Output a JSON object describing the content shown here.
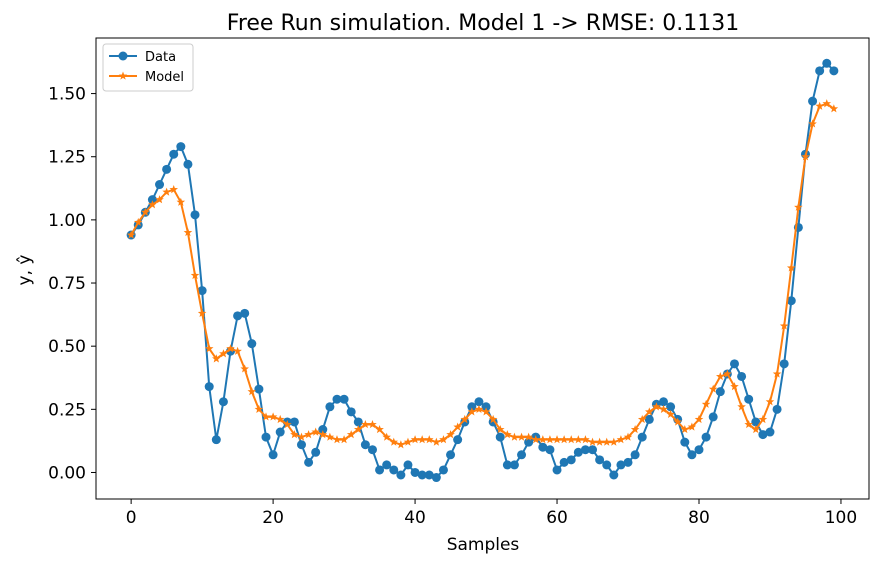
{
  "chart_data": {
    "type": "line",
    "title": "Free Run simulation. Model 1 -> RMSE: 0.1131",
    "xlabel": "Samples",
    "ylabel": "y, ŷ",
    "xlim": [
      -4.95,
      103.95
    ],
    "ylim": [
      -0.105,
      1.72
    ],
    "xticks": [
      0,
      20,
      40,
      60,
      80,
      100
    ],
    "yticks": [
      0.0,
      0.25,
      0.5,
      0.75,
      1.0,
      1.25,
      1.5
    ],
    "xtick_labels": [
      "0",
      "20",
      "40",
      "60",
      "80",
      "100"
    ],
    "ytick_labels": [
      "0.00",
      "0.25",
      "0.50",
      "0.75",
      "1.00",
      "1.25",
      "1.50"
    ],
    "grid": false,
    "legend_position": "upper-left",
    "series": [
      {
        "name": "Data",
        "color": "#1f77b4",
        "marker": "circle",
        "values": [
          0.94,
          0.98,
          1.03,
          1.08,
          1.14,
          1.2,
          1.26,
          1.29,
          1.22,
          1.02,
          0.72,
          0.34,
          0.13,
          0.28,
          0.48,
          0.62,
          0.63,
          0.51,
          0.33,
          0.14,
          0.07,
          0.16,
          0.2,
          0.2,
          0.11,
          0.04,
          0.08,
          0.17,
          0.26,
          0.29,
          0.29,
          0.24,
          0.2,
          0.11,
          0.09,
          0.01,
          0.03,
          0.01,
          -0.01,
          0.03,
          0.0,
          -0.01,
          -0.01,
          -0.02,
          0.01,
          0.07,
          0.13,
          0.2,
          0.26,
          0.28,
          0.26,
          0.2,
          0.14,
          0.03,
          0.03,
          0.07,
          0.12,
          0.14,
          0.1,
          0.09,
          0.01,
          0.04,
          0.05,
          0.08,
          0.09,
          0.09,
          0.05,
          0.03,
          -0.01,
          0.03,
          0.04,
          0.07,
          0.14,
          0.21,
          0.27,
          0.28,
          0.26,
          0.21,
          0.12,
          0.07,
          0.09,
          0.14,
          0.22,
          0.32,
          0.39,
          0.43,
          0.38,
          0.29,
          0.2,
          0.15,
          0.16,
          0.25,
          0.43,
          0.68,
          0.97,
          1.26,
          1.47,
          1.59,
          1.62,
          1.59
        ]
      },
      {
        "name": "Model",
        "color": "#ff7f0e",
        "marker": "star",
        "values": [
          0.94,
          0.99,
          1.03,
          1.06,
          1.08,
          1.11,
          1.12,
          1.07,
          0.95,
          0.78,
          0.63,
          0.49,
          0.45,
          0.47,
          0.49,
          0.48,
          0.41,
          0.32,
          0.25,
          0.22,
          0.22,
          0.21,
          0.19,
          0.15,
          0.14,
          0.15,
          0.16,
          0.15,
          0.14,
          0.13,
          0.13,
          0.15,
          0.17,
          0.19,
          0.19,
          0.17,
          0.14,
          0.12,
          0.11,
          0.12,
          0.13,
          0.13,
          0.13,
          0.12,
          0.13,
          0.15,
          0.18,
          0.21,
          0.24,
          0.25,
          0.24,
          0.21,
          0.17,
          0.15,
          0.14,
          0.14,
          0.14,
          0.13,
          0.13,
          0.13,
          0.13,
          0.13,
          0.13,
          0.13,
          0.13,
          0.12,
          0.12,
          0.12,
          0.12,
          0.13,
          0.14,
          0.17,
          0.21,
          0.24,
          0.26,
          0.25,
          0.23,
          0.2,
          0.17,
          0.18,
          0.21,
          0.27,
          0.33,
          0.38,
          0.39,
          0.34,
          0.26,
          0.19,
          0.17,
          0.21,
          0.28,
          0.39,
          0.58,
          0.81,
          1.05,
          1.25,
          1.38,
          1.45,
          1.46,
          1.44
        ]
      }
    ]
  }
}
